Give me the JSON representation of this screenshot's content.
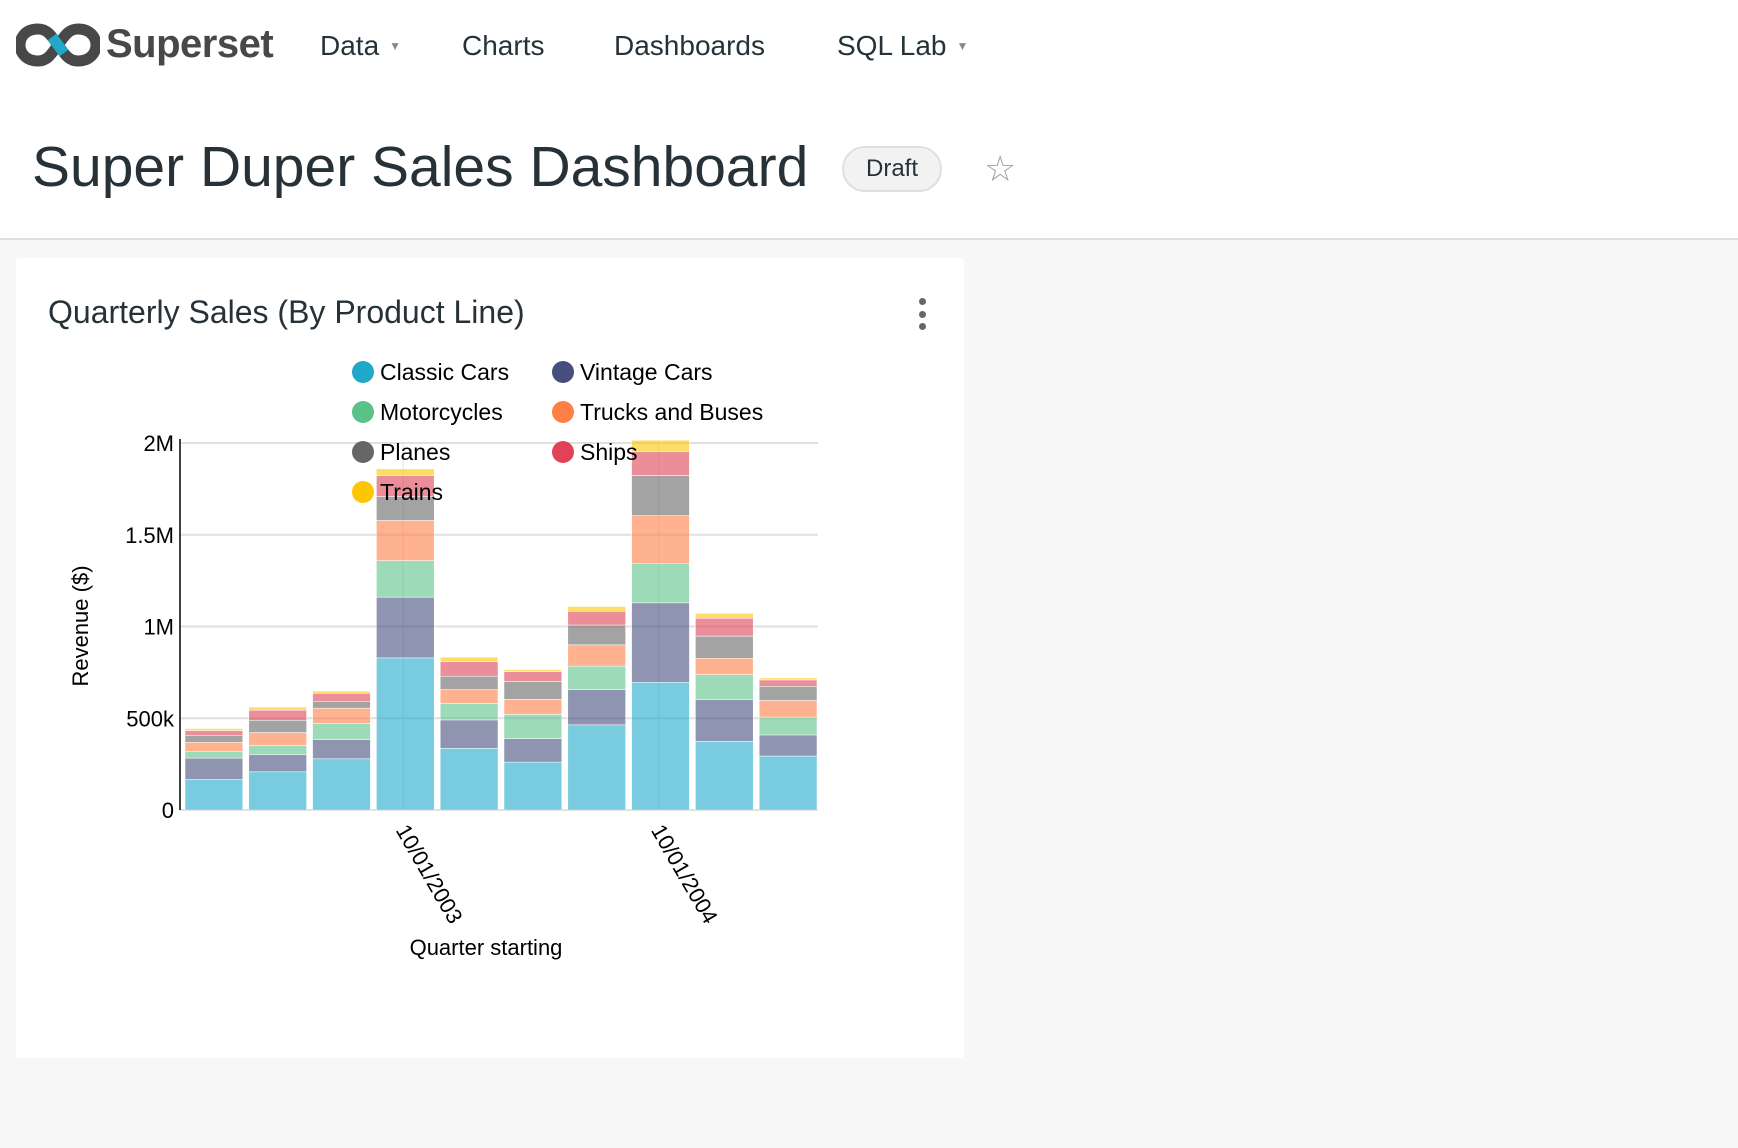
{
  "nav": {
    "brand": "Superset",
    "items": [
      {
        "label": "Data",
        "dropdown": true
      },
      {
        "label": "Charts",
        "dropdown": false
      },
      {
        "label": "Dashboards",
        "dropdown": false
      },
      {
        "label": "SQL Lab",
        "dropdown": true
      }
    ]
  },
  "header": {
    "title": "Super Duper Sales Dashboard",
    "status_badge": "Draft",
    "favorite_icon": "star-outline-icon"
  },
  "card": {
    "title": "Quarterly Sales (By Product Line)",
    "menu_icon": "vertical-ellipsis-icon"
  },
  "chart_data": {
    "type": "bar",
    "stacked": true,
    "xlabel": "Quarter starting",
    "ylabel": "Revenue ($)",
    "ylim": [
      0,
      2000000
    ],
    "yticks": [
      "0",
      "500k",
      "1M",
      "1.5M",
      "2M"
    ],
    "grid": true,
    "legend_position": "top",
    "categories": [
      "01/01/2003",
      "04/01/2003",
      "07/01/2003",
      "10/01/2003",
      "01/01/2004",
      "04/01/2004",
      "07/01/2004",
      "10/01/2004",
      "01/01/2005",
      "04/01/2005"
    ],
    "xtick_labels": [
      "10/01/2003",
      "10/01/2004"
    ],
    "series": [
      {
        "name": "Classic Cars",
        "color": "#1FA8C9",
        "values": [
          166000,
          208000,
          279000,
          829000,
          336000,
          261000,
          464000,
          696000,
          374000,
          294000
        ]
      },
      {
        "name": "Vintage Cars",
        "color": "#454E7C",
        "values": [
          117000,
          93000,
          105000,
          331000,
          155000,
          128000,
          192000,
          433000,
          227000,
          115000
        ]
      },
      {
        "name": "Motorcycles",
        "color": "#5AC189",
        "values": [
          37000,
          50000,
          87000,
          199000,
          90000,
          132000,
          128000,
          213000,
          137000,
          97000
        ]
      },
      {
        "name": "Trucks and Buses",
        "color": "#FF7F44",
        "values": [
          49000,
          71000,
          84000,
          219000,
          75000,
          82000,
          116000,
          262000,
          89000,
          91000
        ]
      },
      {
        "name": "Planes",
        "color": "#666666",
        "values": [
          38000,
          67000,
          35000,
          130000,
          73000,
          98000,
          108000,
          219000,
          121000,
          77000
        ]
      },
      {
        "name": "Ships",
        "color": "#E04355",
        "values": [
          26000,
          55000,
          46000,
          115000,
          80000,
          53000,
          75000,
          131000,
          97000,
          35000
        ]
      },
      {
        "name": "Trains",
        "color": "#FCC700",
        "values": [
          11000,
          17000,
          12000,
          36000,
          24000,
          11000,
          26000,
          61000,
          27000,
          11000
        ]
      }
    ]
  }
}
